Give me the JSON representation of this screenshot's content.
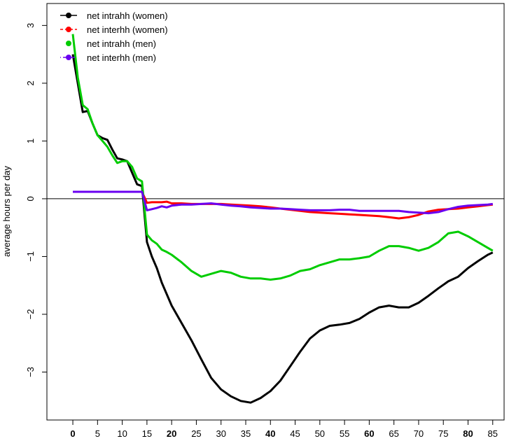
{
  "chart_data": {
    "type": "line",
    "ylabel": "average hours per day",
    "x": [
      0,
      1,
      2,
      3,
      4,
      5,
      6,
      7,
      8,
      9,
      10,
      11,
      12,
      13,
      14,
      15,
      16,
      17,
      18,
      19,
      20,
      22,
      24,
      26,
      28,
      30,
      32,
      34,
      36,
      38,
      40,
      42,
      44,
      46,
      48,
      50,
      52,
      54,
      56,
      58,
      60,
      62,
      64,
      66,
      68,
      70,
      72,
      74,
      76,
      78,
      80,
      82,
      84,
      85
    ],
    "series": [
      {
        "name": "net intrahh (women)",
        "color": "#000000",
        "legend_line": "solid",
        "values": [
          2.5,
          2.0,
          1.5,
          1.52,
          1.3,
          1.1,
          1.05,
          1.02,
          0.85,
          0.7,
          0.68,
          0.65,
          0.45,
          0.25,
          0.22,
          -0.75,
          -1.0,
          -1.2,
          -1.45,
          -1.65,
          -1.85,
          -2.15,
          -2.45,
          -2.78,
          -3.1,
          -3.3,
          -3.42,
          -3.5,
          -3.53,
          -3.45,
          -3.33,
          -3.15,
          -2.9,
          -2.65,
          -2.42,
          -2.28,
          -2.2,
          -2.18,
          -2.15,
          -2.08,
          -1.97,
          -1.88,
          -1.85,
          -1.88,
          -1.88,
          -1.8,
          -1.68,
          -1.55,
          -1.43,
          -1.35,
          -1.2,
          -1.08,
          -0.97,
          -0.93
        ]
      },
      {
        "name": "net interhh (women)",
        "color": "#ff0000",
        "legend_line": "dashed",
        "values": [
          0.12,
          0.12,
          0.12,
          0.12,
          0.12,
          0.12,
          0.12,
          0.12,
          0.12,
          0.12,
          0.12,
          0.12,
          0.12,
          0.12,
          0.12,
          -0.07,
          -0.06,
          -0.06,
          -0.06,
          -0.05,
          -0.08,
          -0.08,
          -0.09,
          -0.09,
          -0.09,
          -0.09,
          -0.1,
          -0.11,
          -0.12,
          -0.13,
          -0.15,
          -0.17,
          -0.19,
          -0.21,
          -0.23,
          -0.24,
          -0.25,
          -0.26,
          -0.27,
          -0.28,
          -0.29,
          -0.3,
          -0.32,
          -0.34,
          -0.32,
          -0.28,
          -0.22,
          -0.19,
          -0.18,
          -0.17,
          -0.15,
          -0.13,
          -0.11,
          -0.1
        ]
      },
      {
        "name": "net intrahh (men)",
        "color": "#00cc00",
        "legend_line": "none",
        "values": [
          2.85,
          2.1,
          1.62,
          1.55,
          1.3,
          1.1,
          1.0,
          0.9,
          0.75,
          0.62,
          0.65,
          0.65,
          0.55,
          0.35,
          0.3,
          -0.62,
          -0.72,
          -0.78,
          -0.88,
          -0.92,
          -0.97,
          -1.1,
          -1.25,
          -1.35,
          -1.3,
          -1.25,
          -1.28,
          -1.35,
          -1.38,
          -1.38,
          -1.4,
          -1.38,
          -1.33,
          -1.25,
          -1.22,
          -1.15,
          -1.1,
          -1.05,
          -1.05,
          -1.03,
          -1.0,
          -0.9,
          -0.82,
          -0.82,
          -0.85,
          -0.9,
          -0.85,
          -0.75,
          -0.6,
          -0.57,
          -0.65,
          -0.75,
          -0.85,
          -0.9
        ]
      },
      {
        "name": "net interhh (men)",
        "color": "#6a00f0",
        "legend_line": "dotdash",
        "values": [
          0.12,
          0.12,
          0.12,
          0.12,
          0.12,
          0.12,
          0.12,
          0.12,
          0.12,
          0.12,
          0.12,
          0.12,
          0.12,
          0.12,
          0.12,
          -0.2,
          -0.18,
          -0.16,
          -0.13,
          -0.15,
          -0.12,
          -0.1,
          -0.1,
          -0.09,
          -0.08,
          -0.1,
          -0.12,
          -0.13,
          -0.15,
          -0.16,
          -0.17,
          -0.17,
          -0.18,
          -0.19,
          -0.2,
          -0.2,
          -0.2,
          -0.19,
          -0.19,
          -0.21,
          -0.21,
          -0.21,
          -0.21,
          -0.21,
          -0.23,
          -0.24,
          -0.25,
          -0.23,
          -0.18,
          -0.14,
          -0.12,
          -0.11,
          -0.1,
          -0.09
        ]
      }
    ],
    "xlim": [
      -5.25,
      87.3
    ],
    "ylim": [
      -3.83,
      3.38
    ],
    "xticks": [
      0,
      5,
      10,
      15,
      20,
      25,
      30,
      35,
      40,
      45,
      50,
      55,
      60,
      65,
      70,
      75,
      80,
      85
    ],
    "yticks": [
      {
        "value": -3,
        "label": "−3"
      },
      {
        "value": -2,
        "label": "−2"
      },
      {
        "value": -1,
        "label": "−1"
      },
      0,
      1,
      2,
      3
    ],
    "hline": 0,
    "legend": "top-left"
  }
}
